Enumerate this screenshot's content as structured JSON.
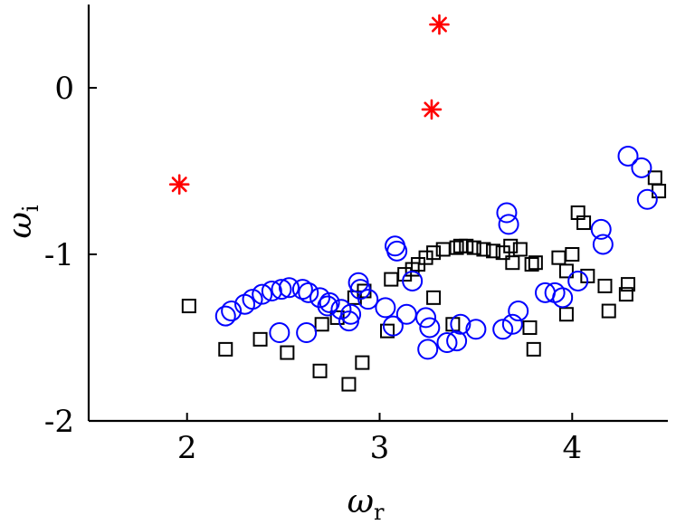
{
  "chart_data": {
    "type": "scatter",
    "xlabel": "ω",
    "xlabel_sub": "r",
    "ylabel": "ω",
    "ylabel_sub": "i",
    "xlim": [
      1.5,
      4.5
    ],
    "ylim": [
      -2,
      0.5
    ],
    "xticks": [
      2,
      3,
      4
    ],
    "yticks": [
      -2,
      -1,
      0
    ],
    "xtick_labels": [
      "2",
      "3",
      "4"
    ],
    "ytick_labels": [
      "-2",
      "-1",
      "0"
    ],
    "grid": false,
    "series": [
      {
        "marker": "square",
        "color": "#000000",
        "points": [
          [
            2.01,
            -1.31
          ],
          [
            2.2,
            -1.57
          ],
          [
            2.38,
            -1.51
          ],
          [
            2.52,
            -1.59
          ],
          [
            2.69,
            -1.7
          ],
          [
            2.7,
            -1.42
          ],
          [
            2.78,
            -1.38
          ],
          [
            2.84,
            -1.78
          ],
          [
            2.87,
            -1.26
          ],
          [
            2.91,
            -1.65
          ],
          [
            2.92,
            -1.22
          ],
          [
            3.04,
            -1.46
          ],
          [
            3.06,
            -1.15
          ],
          [
            3.13,
            -1.12
          ],
          [
            3.17,
            -1.09
          ],
          [
            3.2,
            -1.06
          ],
          [
            3.24,
            -1.02
          ],
          [
            3.28,
            -0.99
          ],
          [
            3.28,
            -1.26
          ],
          [
            3.33,
            -0.97
          ],
          [
            3.38,
            -1.42
          ],
          [
            3.4,
            -0.96
          ],
          [
            3.42,
            -0.95
          ],
          [
            3.45,
            -0.95
          ],
          [
            3.49,
            -0.96
          ],
          [
            3.54,
            -0.97
          ],
          [
            3.59,
            -0.98
          ],
          [
            3.64,
            -0.99
          ],
          [
            3.68,
            -0.95
          ],
          [
            3.69,
            -1.05
          ],
          [
            3.73,
            -0.97
          ],
          [
            3.78,
            -1.44
          ],
          [
            3.79,
            -1.06
          ],
          [
            3.8,
            -1.57
          ],
          [
            3.81,
            -1.05
          ],
          [
            3.93,
            -1.02
          ],
          [
            3.97,
            -1.36
          ],
          [
            3.97,
            -1.1
          ],
          [
            4.0,
            -1.0
          ],
          [
            4.03,
            -0.75
          ],
          [
            4.06,
            -0.81
          ],
          [
            4.08,
            -1.13
          ],
          [
            4.17,
            -1.19
          ],
          [
            4.19,
            -1.34
          ],
          [
            4.28,
            -1.24
          ],
          [
            4.29,
            -1.18
          ],
          [
            4.43,
            -0.54
          ],
          [
            4.45,
            -0.62
          ]
        ]
      },
      {
        "marker": "circle",
        "color": "#0000ff",
        "points": [
          [
            2.2,
            -1.37
          ],
          [
            2.23,
            -1.34
          ],
          [
            2.3,
            -1.3
          ],
          [
            2.34,
            -1.27
          ],
          [
            2.39,
            -1.24
          ],
          [
            2.44,
            -1.22
          ],
          [
            2.49,
            -1.21
          ],
          [
            2.53,
            -1.2
          ],
          [
            2.48,
            -1.47
          ],
          [
            2.6,
            -1.21
          ],
          [
            2.63,
            -1.23
          ],
          [
            2.62,
            -1.47
          ],
          [
            2.69,
            -1.26
          ],
          [
            2.74,
            -1.29
          ],
          [
            2.73,
            -1.31
          ],
          [
            2.8,
            -1.33
          ],
          [
            2.85,
            -1.36
          ],
          [
            2.84,
            -1.4
          ],
          [
            2.89,
            -1.17
          ],
          [
            2.9,
            -1.21
          ],
          [
            2.94,
            -1.27
          ],
          [
            3.03,
            -1.32
          ],
          [
            3.07,
            -1.43
          ],
          [
            3.08,
            -0.95
          ],
          [
            3.09,
            -0.98
          ],
          [
            3.14,
            -1.36
          ],
          [
            3.17,
            -1.16
          ],
          [
            3.24,
            -1.38
          ],
          [
            3.26,
            -1.44
          ],
          [
            3.25,
            -1.57
          ],
          [
            3.35,
            -1.53
          ],
          [
            3.4,
            -1.52
          ],
          [
            3.42,
            -1.42
          ],
          [
            3.5,
            -1.45
          ],
          [
            3.64,
            -1.45
          ],
          [
            3.66,
            -0.75
          ],
          [
            3.67,
            -0.82
          ],
          [
            3.69,
            -1.42
          ],
          [
            3.72,
            -1.34
          ],
          [
            3.86,
            -1.23
          ],
          [
            3.91,
            -1.23
          ],
          [
            3.95,
            -1.26
          ],
          [
            4.03,
            -1.16
          ],
          [
            4.15,
            -0.85
          ],
          [
            4.16,
            -0.94
          ],
          [
            4.29,
            -0.41
          ],
          [
            4.36,
            -0.48
          ],
          [
            4.39,
            -0.67
          ]
        ]
      },
      {
        "marker": "asterisk",
        "color": "#ff0000",
        "points": [
          [
            1.96,
            -0.58
          ],
          [
            3.27,
            -0.13
          ],
          [
            3.31,
            0.38
          ]
        ]
      }
    ]
  }
}
